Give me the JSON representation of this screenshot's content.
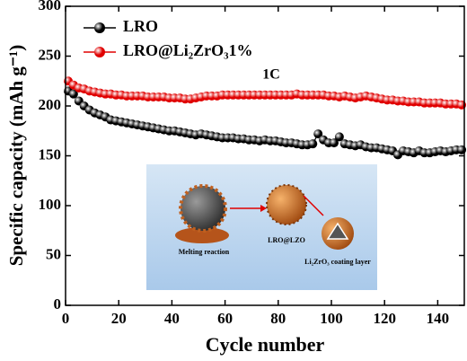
{
  "chart_data": {
    "type": "line",
    "xlabel": "Cycle number",
    "ylabel": "Specific capacity (mAh g⁻¹)",
    "x": [
      1,
      3,
      5,
      7,
      9,
      11,
      13,
      15,
      17,
      19,
      21,
      23,
      25,
      27,
      29,
      31,
      33,
      35,
      37,
      39,
      41,
      43,
      45,
      47,
      49,
      51,
      53,
      55,
      57,
      59,
      61,
      63,
      65,
      67,
      69,
      71,
      73,
      75,
      77,
      79,
      81,
      83,
      85,
      87,
      89,
      91,
      93,
      95,
      97,
      99,
      101,
      103,
      105,
      107,
      109,
      111,
      113,
      115,
      117,
      119,
      121,
      123,
      125,
      127,
      129,
      131,
      133,
      135,
      137,
      139,
      141,
      143,
      145,
      147,
      149
    ],
    "series": [
      {
        "name": "LRO",
        "color": "#000000",
        "values": [
          215,
          212,
          205,
          200,
          196,
          193,
          191,
          189,
          186,
          185,
          184,
          183,
          182,
          181,
          180,
          179,
          178,
          177,
          176,
          175,
          175,
          174,
          173,
          172,
          171,
          172,
          171,
          170,
          169,
          168,
          168,
          168,
          167,
          167,
          166,
          166,
          165,
          166,
          165,
          165,
          164,
          163,
          163,
          162,
          161,
          161,
          162,
          172,
          166,
          163,
          163,
          169,
          162,
          161,
          160,
          161,
          159,
          158,
          158,
          157,
          156,
          155,
          151,
          155,
          154,
          153,
          155,
          153,
          153,
          154,
          155,
          154,
          155,
          156,
          156
        ]
      },
      {
        "name": "LRO@Li₂ZrO₃1%",
        "color": "#e00000",
        "values": [
          225,
          221,
          218,
          217,
          215,
          214,
          213,
          212,
          212,
          211,
          211,
          210,
          210,
          210,
          210,
          209,
          209,
          209,
          209,
          208,
          208,
          208,
          207,
          207,
          208,
          209,
          210,
          210,
          210,
          211,
          211,
          211,
          211,
          211,
          211,
          211,
          211,
          211,
          211,
          211,
          211,
          211,
          211,
          212,
          211,
          211,
          211,
          211,
          211,
          210,
          210,
          209,
          210,
          209,
          208,
          209,
          210,
          209,
          208,
          207,
          206,
          206,
          205,
          205,
          204,
          204,
          204,
          203,
          203,
          203,
          203,
          202,
          202,
          202,
          201
        ]
      }
    ],
    "xlim": [
      0,
      150
    ],
    "xticks": [
      0,
      20,
      40,
      60,
      80,
      100,
      120,
      140
    ],
    "ylim": [
      0,
      300
    ],
    "yticks": [
      0,
      50,
      100,
      150,
      200,
      250,
      300
    ],
    "legend": "upper left",
    "annotations": [
      "1C",
      "Melting reaction",
      "LRO@LZO",
      "Li₂ZrO₃ coating layer"
    ]
  }
}
